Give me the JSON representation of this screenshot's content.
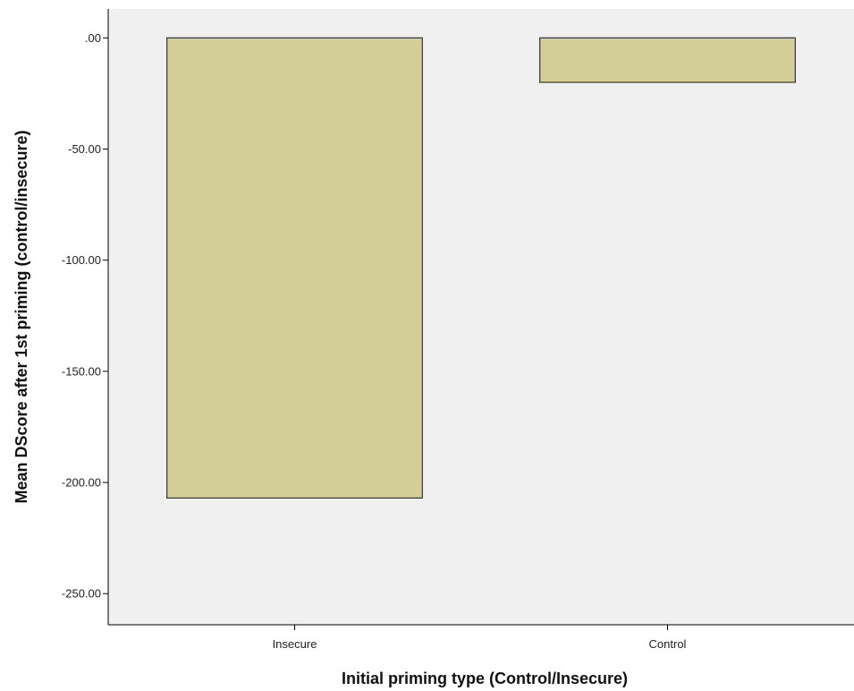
{
  "chart_data": {
    "type": "bar",
    "categories": [
      "Insecure",
      "Control"
    ],
    "values": [
      -207,
      -20
    ],
    "xlabel": "Initial priming type (Control/Insecure)",
    "ylabel": "Mean DScore after 1st priming (control/insecure)",
    "ylim": [
      -264,
      13
    ],
    "yticks": [
      ".00",
      "-50.00",
      "-100.00",
      "-150.00",
      "-200.00",
      "-250.00"
    ],
    "grid": false,
    "legend": false
  },
  "colors": {
    "plot_background": "#f0f0f0",
    "bar_fill": "#d3ce98",
    "bar_stroke": "#333333",
    "axis": "#000000"
  }
}
